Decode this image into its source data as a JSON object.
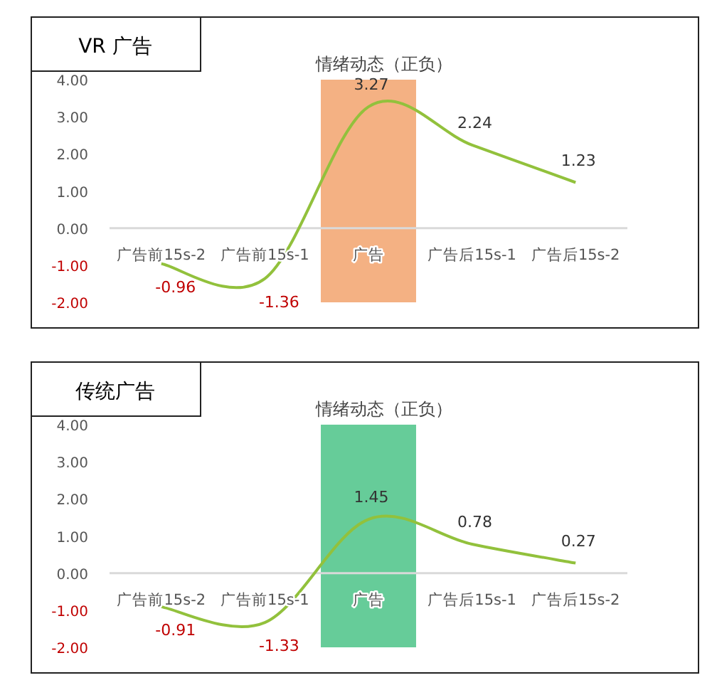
{
  "chart_data": [
    {
      "type": "line",
      "title": "VR 广告",
      "subtitle": "情绪动态（正负）",
      "categories": [
        "广告前15s-2",
        "广告前15s-1",
        "广告",
        "广告后15s-1",
        "广告后15s-2"
      ],
      "series": [
        {
          "color": "#92c13c",
          "values": [
            -0.96,
            -1.36,
            3.27,
            2.24,
            1.23
          ]
        }
      ],
      "ylim": [
        -2,
        4
      ],
      "yticks": [
        {
          "value": 4,
          "label": "4.00"
        },
        {
          "value": 3,
          "label": "3.00"
        },
        {
          "value": 2,
          "label": "2.00"
        },
        {
          "value": 1,
          "label": "1.00"
        },
        {
          "value": 0,
          "label": "0.00"
        },
        {
          "value": -1,
          "label": "-1.00"
        },
        {
          "value": -2,
          "label": "-2.00"
        }
      ],
      "bands": [
        {
          "axis": "x",
          "from": "广告",
          "to": "广告",
          "color": "#f4b183"
        }
      ],
      "data_labels": true
    },
    {
      "type": "line",
      "title": "传统广告",
      "subtitle": "情绪动态（正负）",
      "categories": [
        "广告前15s-2",
        "广告前15s-1",
        "广告",
        "广告后15s-1",
        "广告后15s-2"
      ],
      "series": [
        {
          "color": "#92c13c",
          "values": [
            -0.91,
            -1.33,
            1.45,
            0.78,
            0.27
          ]
        }
      ],
      "ylim": [
        -2,
        4
      ],
      "yticks": [
        {
          "value": 4,
          "label": "4.00"
        },
        {
          "value": 3,
          "label": "3.00"
        },
        {
          "value": 2,
          "label": "2.00"
        },
        {
          "value": 1,
          "label": "1.00"
        },
        {
          "value": 0,
          "label": "0.00"
        },
        {
          "value": -1,
          "label": "-1.00"
        },
        {
          "value": -2,
          "label": "-2.00"
        }
      ],
      "bands": [
        {
          "axis": "x",
          "from": "广告",
          "to": "广告",
          "color": "#66cc99"
        }
      ],
      "data_labels": true
    }
  ]
}
